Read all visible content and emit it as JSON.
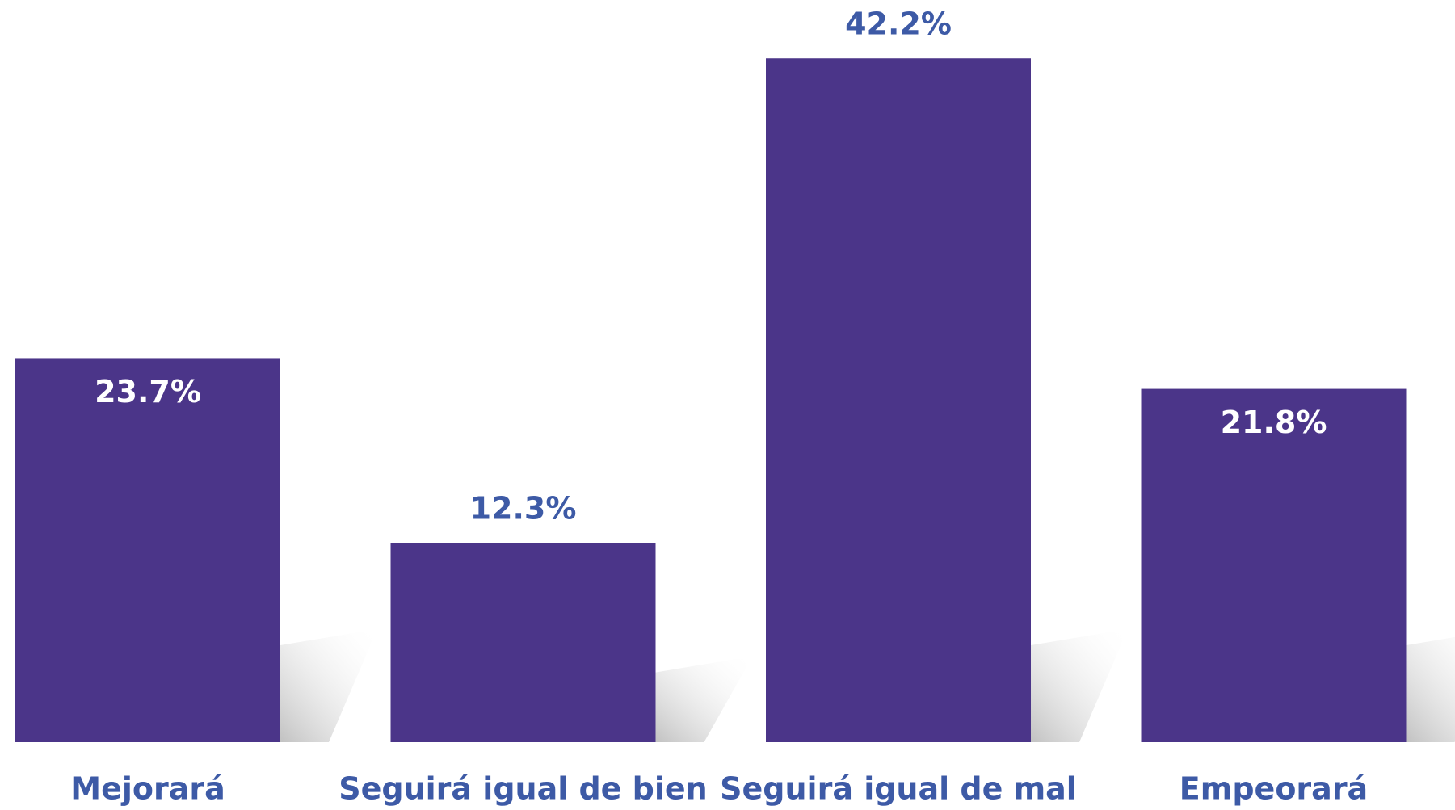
{
  "chart_data": {
    "type": "bar",
    "categories": [
      "Mejorará",
      "Seguirá igual de bien",
      "Seguirá igual de mal",
      "Empeorará"
    ],
    "values": [
      23.7,
      12.3,
      42.2,
      21.8
    ],
    "value_labels": [
      "23.7%",
      "12.3%",
      "42.2%",
      "21.8%"
    ],
    "label_positions": [
      "inside",
      "outside",
      "outside",
      "inside"
    ],
    "color": "#4b3589",
    "ylim": [
      0,
      45.8
    ]
  }
}
